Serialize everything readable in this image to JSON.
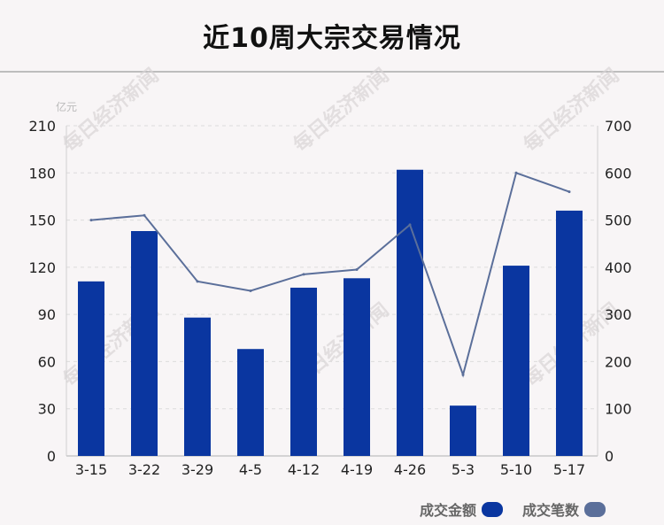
{
  "chart_data": {
    "type": "bar",
    "title": "近10周大宗交易情况",
    "categories": [
      "3-15",
      "3-22",
      "3-29",
      "4-5",
      "4-12",
      "4-19",
      "4-26",
      "5-3",
      "5-10",
      "5-17"
    ],
    "y_left": {
      "unit": "亿元",
      "range": [
        0,
        210
      ],
      "ticks": [
        0,
        30,
        60,
        90,
        120,
        150,
        180,
        210
      ]
    },
    "y_right": {
      "range": [
        0,
        700
      ],
      "ticks": [
        0,
        100,
        200,
        300,
        400,
        500,
        600,
        700
      ]
    },
    "series": [
      {
        "name": "成交金额",
        "kind": "bar",
        "axis": "left",
        "color": "#0a36a0",
        "values": [
          111,
          143,
          88,
          68,
          107,
          113,
          182,
          32,
          121,
          156
        ]
      },
      {
        "name": "成交笔数",
        "kind": "line",
        "axis": "right",
        "color": "#5b6f9a",
        "values": [
          500,
          510,
          370,
          350,
          385,
          395,
          490,
          172,
          600,
          560
        ]
      }
    ],
    "legend_position": "bottom-right",
    "grid": true,
    "watermark": "每日经济新闻"
  }
}
